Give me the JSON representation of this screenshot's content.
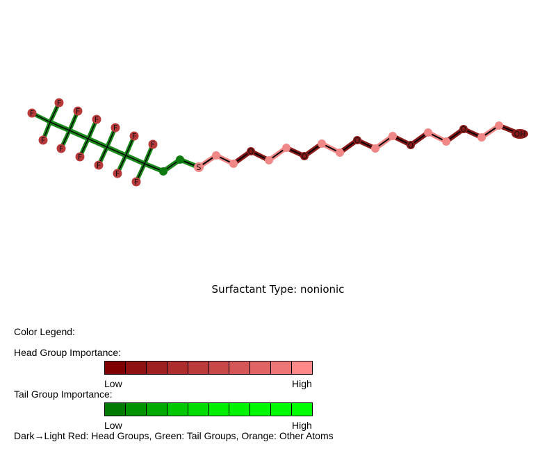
{
  "molecule": {
    "atom_labels": {
      "fluorine": "F",
      "sulfur": "S",
      "oxygen": "O",
      "hydroxyl": "OH"
    },
    "colors": {
      "tail_bond": "#1a8a1a",
      "tail_atom": "#0f7a0f",
      "fluorine_atom": "#b83a3a",
      "head_bond": "#f08888",
      "head_bond_dark": "#8a1a1a",
      "oxygen_atom": "#8a1a1a",
      "carbon_head_atom": "#f08888",
      "backbone_line": "#000000"
    }
  },
  "caption": "Surfactant Type: nonionic",
  "legend": {
    "title": "Color Legend:",
    "head": {
      "title": "Head Group Importance:",
      "low_label": "Low",
      "high_label": "High",
      "colors": [
        "#800000",
        "#8f1212",
        "#9e2020",
        "#ad2c2c",
        "#bb3a3a",
        "#c84848",
        "#d45656",
        "#e06464",
        "#ee7676",
        "#ff8888"
      ]
    },
    "tail": {
      "title": "Tail Group Importance:",
      "low_label": "Low",
      "high_label": "High",
      "colors": [
        "#007a00",
        "#009300",
        "#00aa00",
        "#00c800",
        "#00dd00",
        "#00ee00",
        "#00f400",
        "#00f800",
        "#00fb00",
        "#00ff00"
      ]
    },
    "footnote": "Dark→Light Red: Head Groups, Green: Tail Groups, Orange: Other Atoms"
  }
}
